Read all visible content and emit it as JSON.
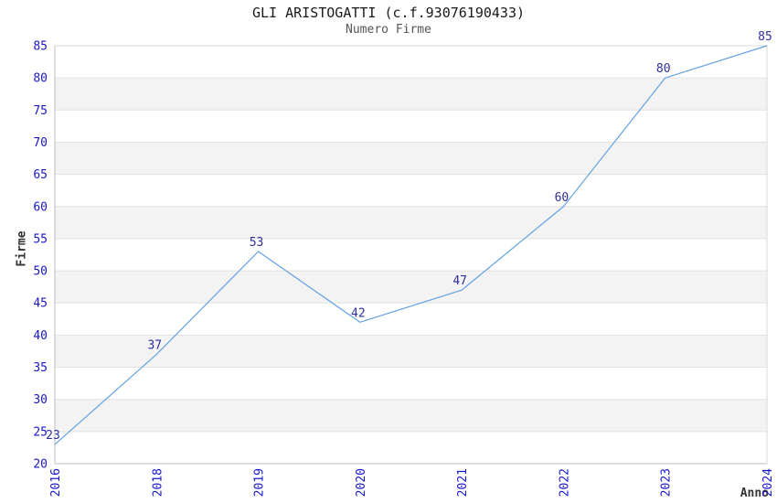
{
  "chart_data": {
    "type": "line",
    "title": "GLI ARISTOGATTI (c.f.93076190433)",
    "subtitle": "Numero Firme",
    "xlabel": "Anno",
    "ylabel": "Firme",
    "categories": [
      "2016",
      "2018",
      "2019",
      "2020",
      "2021",
      "2022",
      "2023",
      "2024"
    ],
    "series": [
      {
        "name": "Numero Firme",
        "values": [
          23,
          37,
          53,
          42,
          47,
          60,
          80,
          85
        ]
      }
    ],
    "ylim": [
      20,
      85
    ],
    "ytick_step": 5,
    "yticks": [
      20,
      25,
      30,
      35,
      40,
      45,
      50,
      55,
      60,
      65,
      70,
      75,
      80,
      85
    ],
    "grid": "horizontal-bands",
    "legend_position": "none",
    "markers": "none",
    "colors": {
      "line": "#64a1e2",
      "tick_label": "#1717cf",
      "data_label": "#2e2e9e",
      "band_gray": "#f3f3f3",
      "band_white": "#ffffff",
      "gridline": "#e1e1e1",
      "plot_border": "#d8d8d8",
      "axis_line": "#bdbdbd",
      "title": "#1a1a1a",
      "subtitle": "#555555",
      "axis_title": "#333333"
    }
  }
}
